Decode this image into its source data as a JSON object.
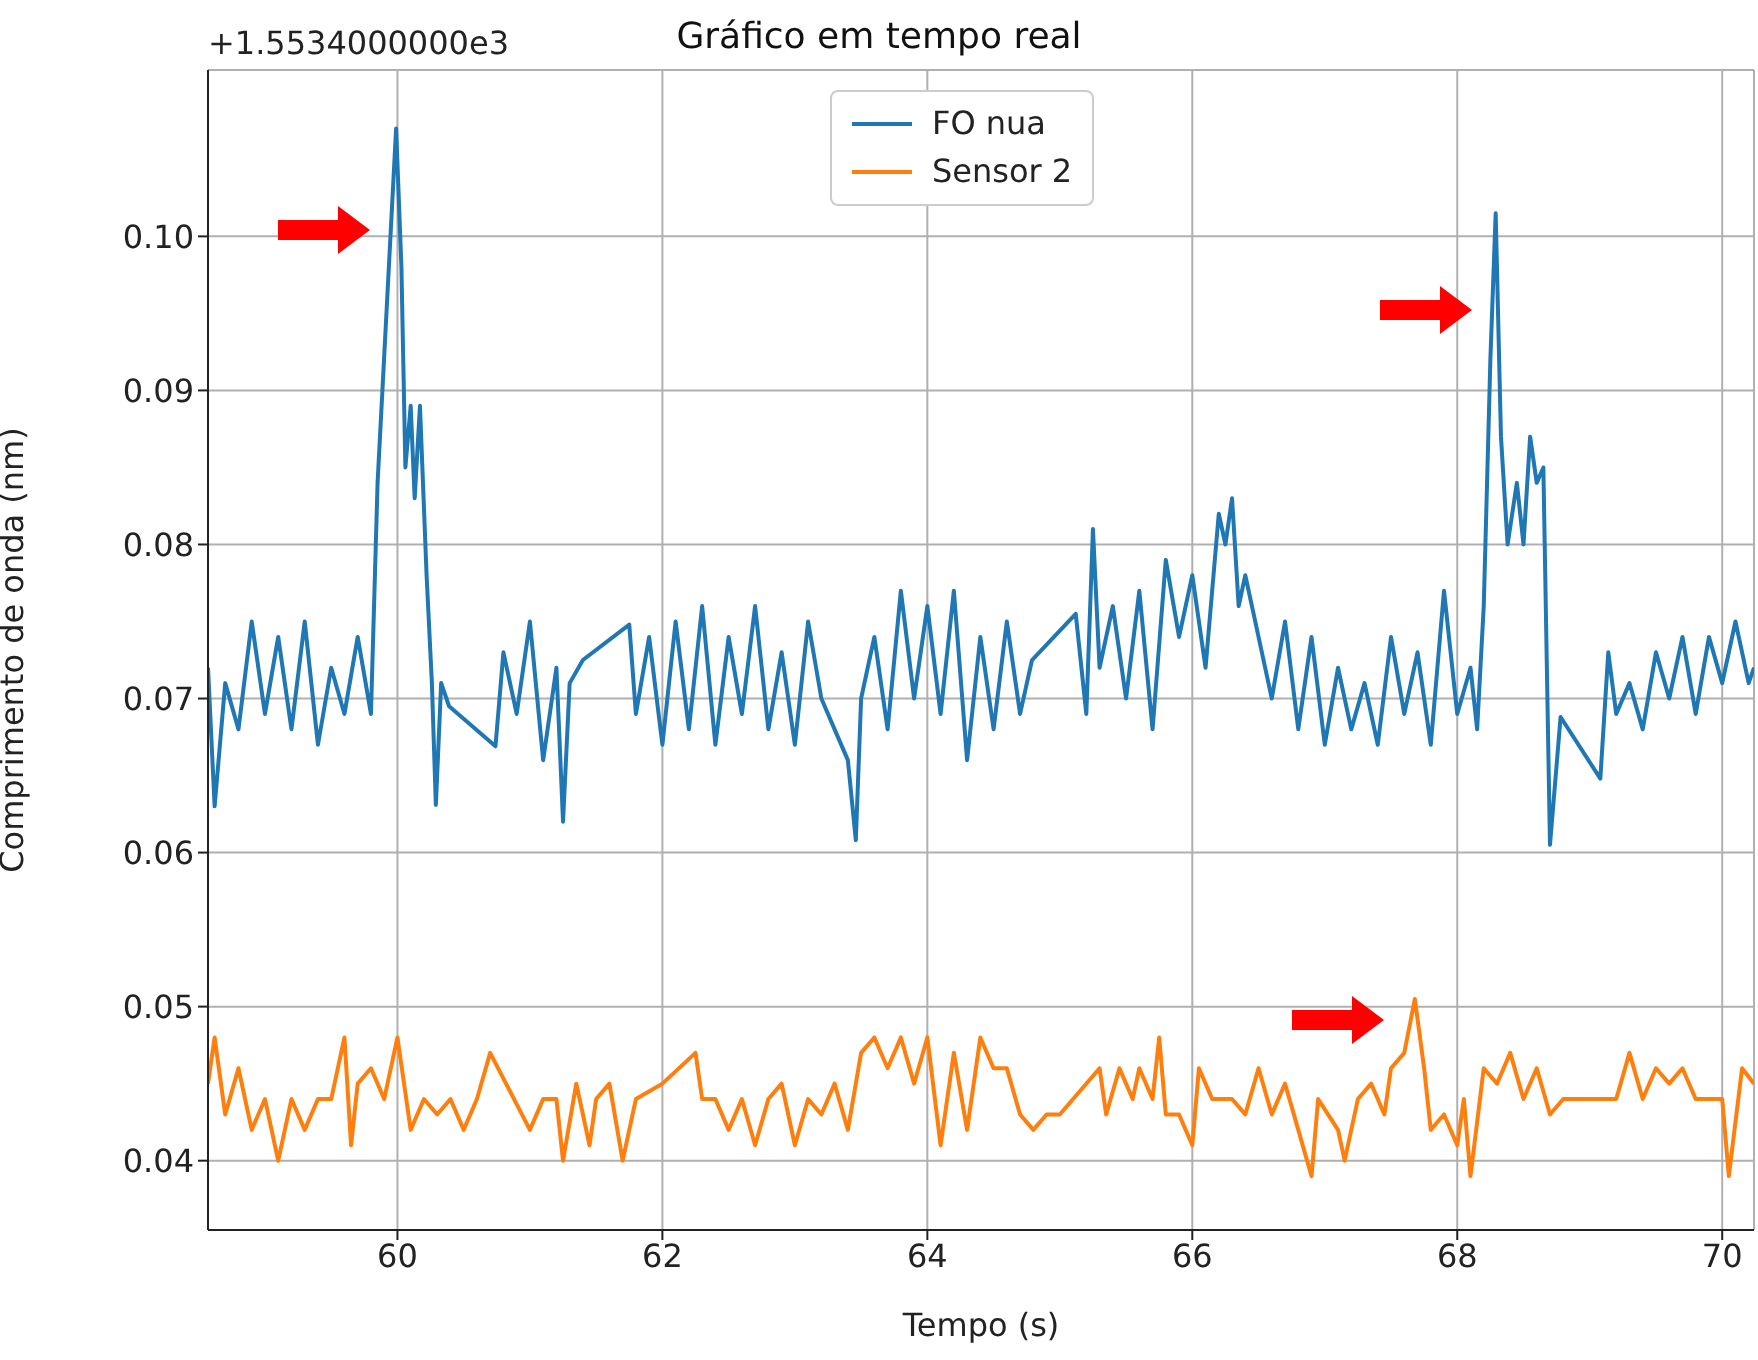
{
  "chart_data": {
    "type": "line",
    "title": "Gráfico em tempo real",
    "xlabel": "Tempo (s)",
    "ylabel": "Comprimento de onda (nm)",
    "annotations": [
      "+1.5534000000e3"
    ],
    "xlim": [
      58.57,
      70.24
    ],
    "xticks": [
      60,
      62,
      64,
      66,
      68,
      70
    ],
    "ylim": [
      0.0355,
      0.1108
    ],
    "yticks": [
      0.04,
      0.05,
      0.06,
      0.07,
      0.08,
      0.09,
      {
        "value": 0.1,
        "label": "0.10"
      }
    ],
    "grid": true,
    "legend": "top",
    "marker": "none",
    "line_style": "solid",
    "series": [
      {
        "name": "FO nua",
        "color": "#1f77b4",
        "x": [
          58.57,
          58.62,
          58.7,
          58.8,
          58.9,
          59.0,
          59.1,
          59.2,
          59.3,
          59.4,
          59.5,
          59.6,
          59.7,
          59.8,
          59.85,
          59.99,
          60.03,
          60.06,
          60.1,
          60.13,
          60.17,
          60.22,
          60.26,
          60.29,
          60.33,
          60.39,
          60.74,
          60.8,
          60.9,
          61.0,
          61.1,
          61.2,
          61.25,
          61.3,
          61.4,
          61.75,
          61.8,
          61.9,
          62.0,
          62.1,
          62.2,
          62.3,
          62.4,
          62.5,
          62.6,
          62.7,
          62.8,
          62.9,
          63.0,
          63.1,
          63.2,
          63.3,
          63.4,
          63.46,
          63.5,
          63.6,
          63.7,
          63.8,
          63.9,
          64.0,
          64.1,
          64.2,
          64.3,
          64.4,
          64.5,
          64.6,
          64.7,
          64.79,
          65.12,
          65.2,
          65.25,
          65.3,
          65.4,
          65.5,
          65.6,
          65.7,
          65.8,
          65.9,
          66.0,
          66.1,
          66.2,
          66.25,
          66.3,
          66.35,
          66.4,
          66.5,
          66.6,
          66.7,
          66.8,
          66.9,
          67.0,
          67.1,
          67.2,
          67.3,
          67.4,
          67.5,
          67.6,
          67.7,
          67.8,
          67.9,
          68.0,
          68.1,
          68.15,
          68.2,
          68.25,
          68.29,
          68.33,
          68.38,
          68.45,
          68.5,
          68.55,
          68.6,
          68.65,
          68.7,
          68.78,
          69.08,
          69.14,
          69.2,
          69.3,
          69.4,
          69.5,
          69.6,
          69.7,
          69.8,
          69.9,
          70.0,
          70.1,
          70.2,
          70.24
        ],
        "values": [
          0.072,
          0.063,
          0.071,
          0.068,
          0.075,
          0.069,
          0.074,
          0.068,
          0.075,
          0.067,
          0.072,
          0.069,
          0.074,
          0.069,
          0.084,
          0.107,
          0.098,
          0.085,
          0.089,
          0.083,
          0.089,
          0.078,
          0.071,
          0.0631,
          0.071,
          0.0695,
          0.0669,
          0.073,
          0.069,
          0.075,
          0.066,
          0.072,
          0.062,
          0.071,
          0.0725,
          0.0748,
          0.069,
          0.074,
          0.067,
          0.075,
          0.068,
          0.076,
          0.067,
          0.074,
          0.069,
          0.076,
          0.068,
          0.073,
          0.067,
          0.075,
          0.07,
          0.068,
          0.066,
          0.0608,
          0.07,
          0.074,
          0.068,
          0.077,
          0.07,
          0.076,
          0.069,
          0.077,
          0.066,
          0.074,
          0.068,
          0.075,
          0.069,
          0.0725,
          0.0755,
          0.069,
          0.081,
          0.072,
          0.076,
          0.07,
          0.077,
          0.068,
          0.079,
          0.074,
          0.078,
          0.072,
          0.082,
          0.08,
          0.083,
          0.076,
          0.078,
          0.074,
          0.07,
          0.075,
          0.068,
          0.074,
          0.067,
          0.072,
          0.068,
          0.071,
          0.067,
          0.074,
          0.069,
          0.073,
          0.067,
          0.077,
          0.069,
          0.072,
          0.068,
          0.076,
          0.092,
          0.1015,
          0.087,
          0.08,
          0.084,
          0.08,
          0.087,
          0.084,
          0.085,
          0.0605,
          0.0688,
          0.0648,
          0.073,
          0.069,
          0.071,
          0.068,
          0.073,
          0.07,
          0.074,
          0.069,
          0.074,
          0.071,
          0.075,
          0.071,
          0.072
        ]
      },
      {
        "name": "Sensor 2",
        "color": "#ff7f0e",
        "x": [
          58.57,
          58.62,
          58.7,
          58.8,
          58.9,
          59.0,
          59.1,
          59.2,
          59.3,
          59.4,
          59.5,
          59.6,
          59.65,
          59.7,
          59.8,
          59.9,
          60.0,
          60.1,
          60.2,
          60.3,
          60.4,
          60.5,
          60.6,
          60.7,
          61.0,
          61.1,
          61.2,
          61.25,
          61.35,
          61.45,
          61.5,
          61.6,
          61.7,
          61.8,
          62.0,
          62.25,
          62.3,
          62.4,
          62.5,
          62.6,
          62.7,
          62.8,
          62.9,
          63.0,
          63.1,
          63.2,
          63.3,
          63.4,
          63.5,
          63.6,
          63.7,
          63.8,
          63.9,
          64.0,
          64.1,
          64.2,
          64.3,
          64.4,
          64.5,
          64.6,
          64.7,
          64.8,
          64.9,
          65.0,
          65.3,
          65.35,
          65.45,
          65.55,
          65.6,
          65.7,
          65.75,
          65.8,
          65.9,
          66.0,
          66.05,
          66.15,
          66.3,
          66.4,
          66.5,
          66.6,
          66.7,
          66.8,
          66.9,
          66.95,
          67.1,
          67.15,
          67.25,
          67.35,
          67.45,
          67.5,
          67.6,
          67.68,
          67.75,
          67.8,
          67.9,
          68.0,
          68.05,
          68.1,
          68.2,
          68.3,
          68.4,
          68.5,
          68.6,
          68.7,
          68.8,
          69.2,
          69.3,
          69.4,
          69.5,
          69.6,
          69.7,
          69.8,
          69.9,
          70.0,
          70.05,
          70.15,
          70.24
        ],
        "values": [
          0.045,
          0.048,
          0.043,
          0.046,
          0.042,
          0.044,
          0.04,
          0.044,
          0.042,
          0.044,
          0.044,
          0.048,
          0.041,
          0.045,
          0.046,
          0.044,
          0.048,
          0.042,
          0.044,
          0.043,
          0.044,
          0.042,
          0.044,
          0.047,
          0.042,
          0.044,
          0.044,
          0.04,
          0.045,
          0.041,
          0.044,
          0.045,
          0.04,
          0.044,
          0.045,
          0.047,
          0.044,
          0.044,
          0.042,
          0.044,
          0.041,
          0.044,
          0.045,
          0.041,
          0.044,
          0.043,
          0.045,
          0.042,
          0.047,
          0.048,
          0.046,
          0.048,
          0.045,
          0.048,
          0.041,
          0.047,
          0.042,
          0.048,
          0.046,
          0.046,
          0.043,
          0.042,
          0.043,
          0.043,
          0.046,
          0.043,
          0.046,
          0.044,
          0.046,
          0.044,
          0.048,
          0.043,
          0.043,
          0.041,
          0.046,
          0.044,
          0.044,
          0.043,
          0.046,
          0.043,
          0.045,
          0.042,
          0.039,
          0.044,
          0.042,
          0.04,
          0.044,
          0.045,
          0.043,
          0.046,
          0.047,
          0.0505,
          0.046,
          0.042,
          0.043,
          0.041,
          0.044,
          0.039,
          0.046,
          0.045,
          0.047,
          0.044,
          0.046,
          0.043,
          0.044,
          0.044,
          0.047,
          0.044,
          0.046,
          0.045,
          0.046,
          0.044,
          0.044,
          0.044,
          0.039,
          0.046,
          0.045
        ]
      }
    ]
  }
}
